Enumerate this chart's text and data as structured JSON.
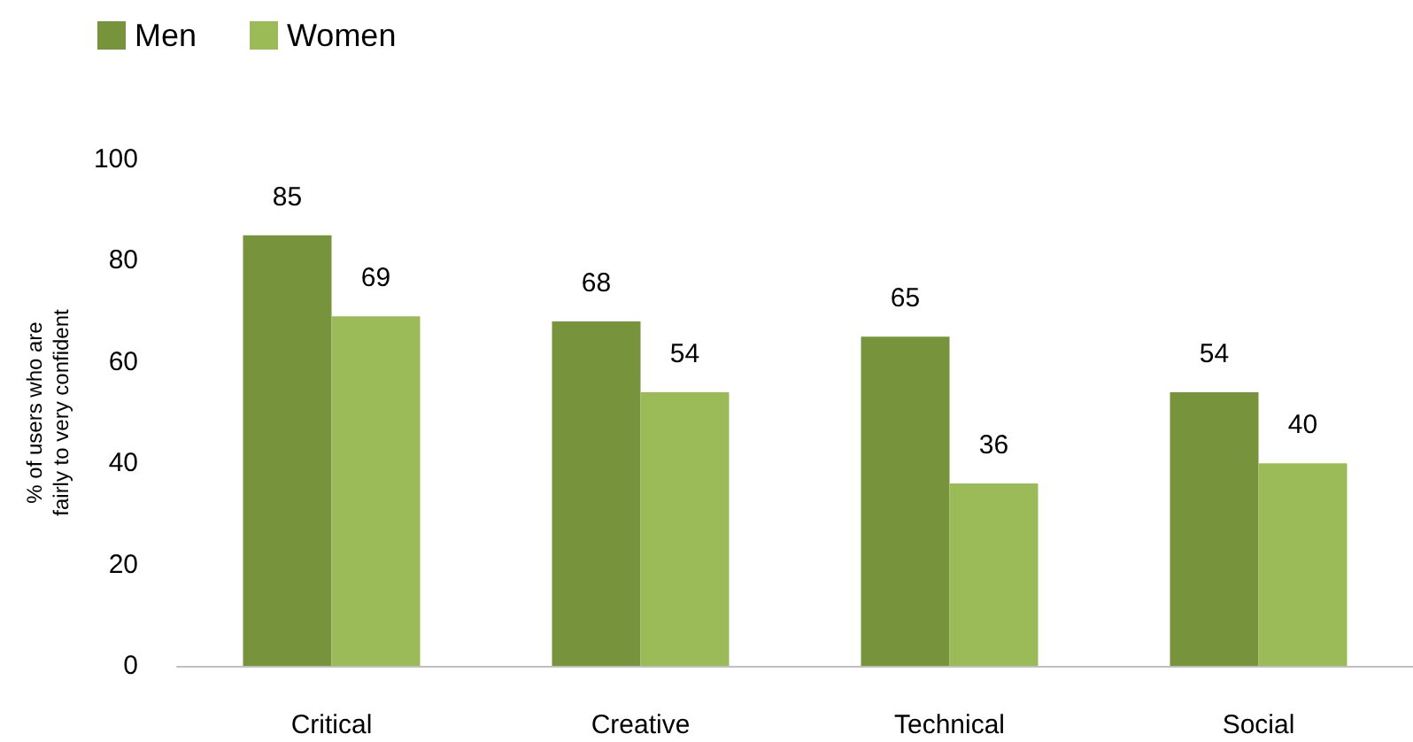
{
  "chart_data": {
    "type": "bar",
    "ylabel": "% of users who are\nfairly to very confident",
    "categories": [
      "Critical",
      "Creative",
      "Technical",
      "Social"
    ],
    "series": [
      {
        "name": "Men",
        "color": "#77933c",
        "values": [
          85,
          68,
          65,
          54
        ]
      },
      {
        "name": "Women",
        "color": "#9bbb59",
        "values": [
          69,
          54,
          36,
          40
        ]
      }
    ],
    "ylim": [
      0,
      100
    ],
    "yticks": [
      0,
      20,
      40,
      60,
      80,
      100
    ],
    "grid": false,
    "legend": "top left",
    "data_labels": true
  }
}
